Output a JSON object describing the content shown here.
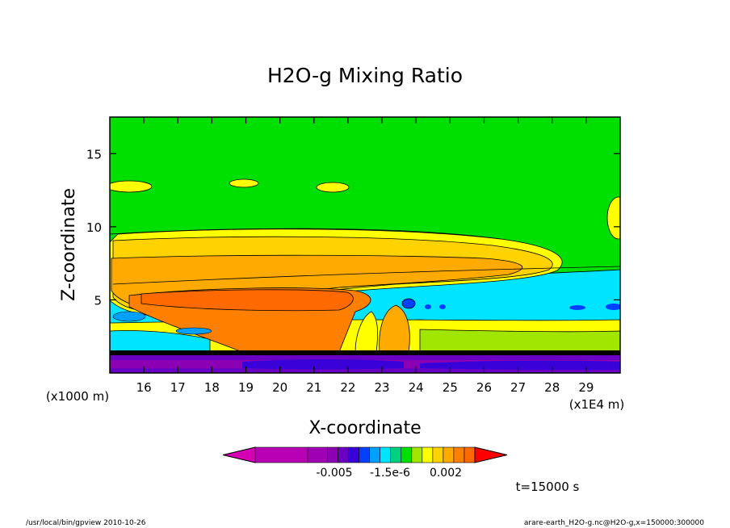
{
  "chart_data": {
    "type": "heatmap",
    "title": "H2O-g Mixing Ratio",
    "xlabel": "X-coordinate",
    "ylabel": "Z-coordinate",
    "x_unit_left": "(x1000 m)",
    "x_unit_right": "(x1E4 m)",
    "x_ticks": [
      16,
      17,
      18,
      19,
      20,
      21,
      22,
      23,
      24,
      25,
      26,
      27,
      28,
      29
    ],
    "y_ticks": [
      5,
      10,
      15
    ],
    "xlim": [
      15.0,
      30.0
    ],
    "ylim": [
      0.0,
      17.5
    ],
    "grid": false,
    "colorbar": {
      "colors": [
        "#d400b4",
        "#b800b4",
        "#a000b4",
        "#8c00b4",
        "#6a00c4",
        "#3a00d8",
        "#0040ff",
        "#00a0ff",
        "#00e4ff",
        "#00d080",
        "#00e000",
        "#a0e600",
        "#ffff00",
        "#ffd200",
        "#ffaa00",
        "#ff8000",
        "#ff6a00",
        "#ff0000"
      ],
      "tick_labels": [
        "-0.005",
        "-1.5e-6",
        "0.002"
      ]
    },
    "time_label": "t=15000 s"
  },
  "footer": {
    "left": "/usr/local/bin/gpview  2010-10-26",
    "right": "arare-earth_H2O-g.nc@H2O-g,x=150000:300000"
  }
}
